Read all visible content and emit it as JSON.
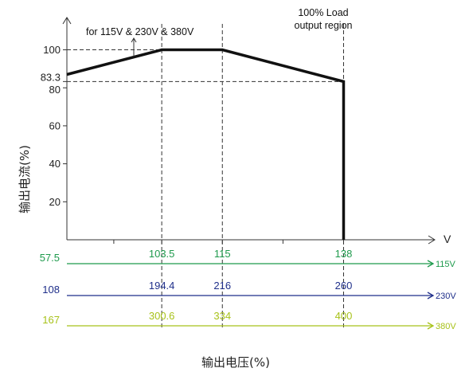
{
  "chart_data": {
    "type": "line",
    "title": "",
    "ylabel": "输出电流(%)",
    "xlabel": "输出电压(%)",
    "x_unit": "V",
    "xlim": [
      85.5,
      155
    ],
    "ylim": [
      0,
      117
    ],
    "yticks": [
      20,
      40,
      60,
      80,
      83.3,
      100
    ],
    "series": [
      {
        "name": "",
        "x": [
          85.5,
          103.5,
          115,
          138,
          138
        ],
        "y": [
          87,
          100,
          100,
          83.3,
          0
        ]
      }
    ],
    "reference_lines": {
      "horizontal": [
        100,
        83.3
      ],
      "vertical": [
        103.5,
        115,
        138
      ]
    },
    "voltage_scales": [
      {
        "name": "115V",
        "color": "#1e9a4c",
        "start": "57.5",
        "values": [
          "103.5",
          "115",
          "138"
        ]
      },
      {
        "name": "230V",
        "color": "#1f2f8a",
        "start": "108",
        "values": [
          "194.4",
          "216",
          "260"
        ]
      },
      {
        "name": "380V",
        "color": "#a8c21a",
        "start": "167",
        "values": [
          "300.6",
          "334",
          "400"
        ]
      }
    ],
    "annotations": [
      {
        "text": "for 115V & 230V & 380V"
      },
      {
        "text": "100% Load"
      },
      {
        "text": "output region"
      }
    ]
  }
}
